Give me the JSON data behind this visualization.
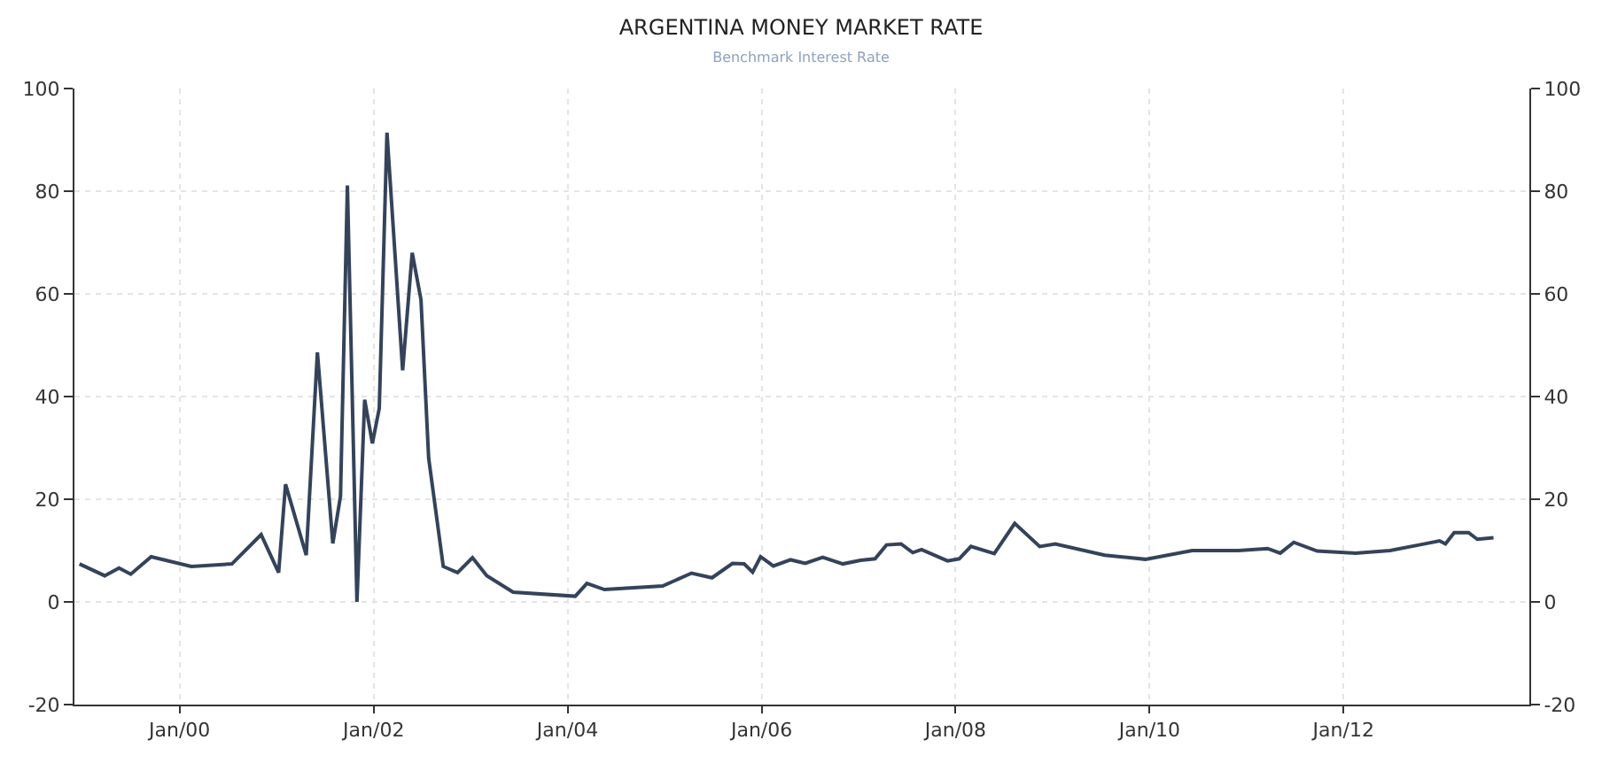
{
  "chart_data": {
    "type": "line",
    "title": "ARGENTINA MONEY MARKET RATE",
    "subtitle": "Benchmark Interest Rate",
    "x": [
      "1998-12-20",
      "1999-03-25",
      "1999-05-18",
      "1999-07-01",
      "1999-09-16",
      "2000-02-14",
      "2000-07-16",
      "2000-11-03",
      "2001-01-08",
      "2001-02-03",
      "2001-04-22",
      "2001-06-03",
      "2001-07-31",
      "2001-08-29",
      "2001-09-24",
      "2001-10-30",
      "2001-11-28",
      "2001-12-27",
      "2002-01-22",
      "2002-02-20",
      "2002-04-20",
      "2002-05-26",
      "2002-06-28",
      "2002-07-27",
      "2002-09-20",
      "2002-11-13",
      "2003-01-08",
      "2003-03-03",
      "2003-06-10",
      "2004-01-30",
      "2004-03-14",
      "2004-05-19",
      "2004-12-24",
      "2005-04-12",
      "2005-06-28",
      "2005-09-13",
      "2005-10-27",
      "2005-11-28",
      "2005-12-28",
      "2006-02-14",
      "2006-04-20",
      "2006-06-14",
      "2006-08-19",
      "2006-11-03",
      "2007-01-08",
      "2007-03-04",
      "2007-04-16",
      "2007-06-10",
      "2007-07-24",
      "2007-08-26",
      "2007-12-02",
      "2008-01-15",
      "2008-02-28",
      "2008-05-26",
      "2008-08-11",
      "2008-11-13",
      "2009-01-11",
      "2009-07-16",
      "2009-12-16",
      "2010-06-10",
      "2010-12-02",
      "2011-03-21",
      "2011-05-08",
      "2011-06-28",
      "2011-09-24",
      "2012-02-14",
      "2012-06-24",
      "2012-10-12",
      "2012-12-28",
      "2013-01-19",
      "2013-02-21",
      "2013-04-16",
      "2013-05-19",
      "2013-07-19"
    ],
    "series": [
      {
        "color": "#34435a",
        "values": [
          7.4,
          5.1,
          6.6,
          5.4,
          8.8,
          6.9,
          7.4,
          13.1,
          5.7,
          22.9,
          9.1,
          48.6,
          11.4,
          20.6,
          81.1,
          0,
          39.4,
          30.9,
          37.7,
          91.4,
          45.1,
          68,
          58.9,
          28,
          6.9,
          5.7,
          8.6,
          5.1,
          1.9,
          1.1,
          3.6,
          2.4,
          3.1,
          5.6,
          4.7,
          7.5,
          7.4,
          5.8,
          8.8,
          7.0,
          8.2,
          7.5,
          8.7,
          7.4,
          8.1,
          8.4,
          11.1,
          11.3,
          9.6,
          10.2,
          8.0,
          8.4,
          10.8,
          9.4,
          15.3,
          10.8,
          11.3,
          9.1,
          8.3,
          10.0,
          10.0,
          10.4,
          9.5,
          11.6,
          9.9,
          9.5,
          10.0,
          11.1,
          11.9,
          11.3,
          13.5,
          13.5,
          12.2,
          12.5
        ]
      }
    ],
    "xlim": [
      "1998-12-01",
      "2013-12-01"
    ],
    "xticks": [
      {
        "value": "2000-01-01",
        "label": "Jan/00"
      },
      {
        "value": "2002-01-01",
        "label": "Jan/02"
      },
      {
        "value": "2004-01-01",
        "label": "Jan/04"
      },
      {
        "value": "2006-01-01",
        "label": "Jan/06"
      },
      {
        "value": "2008-01-01",
        "label": "Jan/08"
      },
      {
        "value": "2010-01-01",
        "label": "Jan/10"
      },
      {
        "value": "2012-01-01",
        "label": "Jan/12"
      }
    ],
    "ylim": [
      -20,
      100
    ],
    "yticks": [
      -20,
      0,
      20,
      40,
      60,
      80,
      100
    ],
    "y2lim": [
      -20,
      100
    ],
    "y2ticks": [
      -20,
      0,
      20,
      40,
      60,
      80,
      100
    ],
    "grid": true,
    "marker": "none",
    "line_style": "solid"
  }
}
